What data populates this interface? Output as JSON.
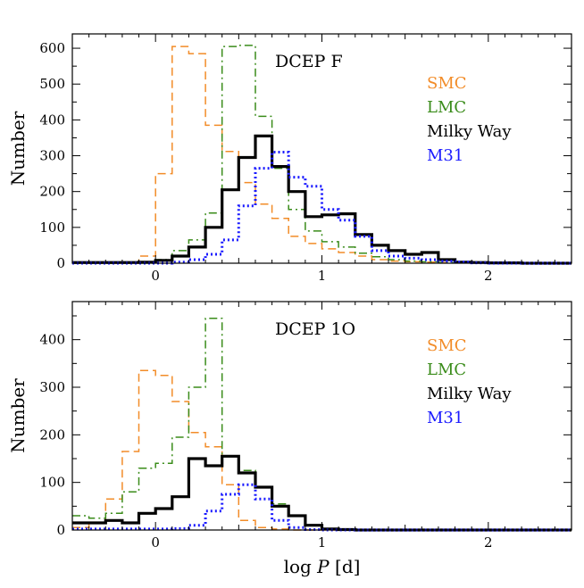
{
  "chart_data": [
    {
      "type": "histogram",
      "title": "DCEP F",
      "xlabel": "",
      "ylabel": "Number",
      "xlim": [
        -0.5,
        2.5
      ],
      "ylim": [
        0,
        640
      ],
      "xticks": [
        0,
        1,
        2
      ],
      "yticks": [
        0,
        100,
        200,
        300,
        400,
        500,
        600
      ],
      "legend_position": "right",
      "bin_edges": [
        -0.5,
        -0.4,
        -0.3,
        -0.2,
        -0.1,
        0.0,
        0.1,
        0.2,
        0.3,
        0.4,
        0.5,
        0.6,
        0.7,
        0.8,
        0.9,
        1.0,
        1.1,
        1.2,
        1.3,
        1.4,
        1.5,
        1.6,
        1.7,
        1.8,
        1.9,
        2.0,
        2.1,
        2.2,
        2.3,
        2.4,
        2.5
      ],
      "series": [
        {
          "name": "SMC",
          "color": "#f28c28",
          "linestyle": "dashed",
          "values": [
            0,
            0,
            0,
            0,
            20,
            250,
            605,
            585,
            385,
            312,
            225,
            165,
            125,
            75,
            55,
            40,
            30,
            20,
            10,
            6,
            4,
            3,
            2,
            2,
            1,
            1,
            0,
            0,
            0,
            0
          ]
        },
        {
          "name": "LMC",
          "color": "#3a8c1a",
          "linestyle": "dashdot",
          "values": [
            0,
            0,
            0,
            0,
            0,
            10,
            35,
            65,
            140,
            605,
            608,
            410,
            265,
            150,
            90,
            60,
            45,
            28,
            18,
            10,
            6,
            4,
            2,
            1,
            1,
            0,
            0,
            0,
            0,
            0
          ]
        },
        {
          "name": "Milky Way",
          "color": "#000000",
          "linestyle": "solid",
          "values": [
            2,
            2,
            2,
            2,
            3,
            8,
            20,
            45,
            100,
            205,
            295,
            355,
            270,
            200,
            130,
            135,
            138,
            80,
            50,
            35,
            25,
            30,
            10,
            3,
            2,
            1,
            1,
            0,
            0,
            0
          ]
        },
        {
          "name": "M31",
          "color": "#1a1aff",
          "linestyle": "dotted",
          "values": [
            0,
            0,
            0,
            0,
            0,
            0,
            3,
            10,
            25,
            65,
            160,
            265,
            310,
            240,
            215,
            150,
            120,
            75,
            35,
            20,
            14,
            10,
            6,
            3,
            1,
            0,
            0,
            0,
            0,
            0
          ]
        }
      ]
    },
    {
      "type": "histogram",
      "title": "DCEP 1O",
      "xlabel": "log P [d]",
      "ylabel": "Number",
      "xlim": [
        -0.5,
        2.5
      ],
      "ylim": [
        0,
        480
      ],
      "xticks": [
        0,
        1,
        2
      ],
      "yticks": [
        0,
        100,
        200,
        300,
        400
      ],
      "legend_position": "right",
      "bin_edges": [
        -0.5,
        -0.4,
        -0.3,
        -0.2,
        -0.1,
        0.0,
        0.1,
        0.2,
        0.3,
        0.4,
        0.5,
        0.6,
        0.7,
        0.8,
        0.9,
        1.0,
        1.1,
        1.2,
        1.3,
        1.4,
        1.5,
        1.6,
        1.7,
        1.8,
        1.9,
        2.0,
        2.1,
        2.2,
        2.3,
        2.4,
        2.5
      ],
      "series": [
        {
          "name": "SMC",
          "color": "#f28c28",
          "linestyle": "dashed",
          "values": [
            5,
            15,
            65,
            165,
            335,
            325,
            270,
            205,
            175,
            95,
            20,
            5,
            2,
            0,
            0,
            0,
            0,
            0,
            0,
            0,
            0,
            0,
            0,
            0,
            0,
            0,
            0,
            0,
            0,
            0
          ]
        },
        {
          "name": "LMC",
          "color": "#3a8c1a",
          "linestyle": "dashdot",
          "values": [
            30,
            25,
            35,
            80,
            130,
            140,
            195,
            300,
            445,
            155,
            125,
            90,
            55,
            30,
            10,
            3,
            1,
            0,
            0,
            0,
            0,
            0,
            0,
            0,
            0,
            0,
            0,
            0,
            0,
            0
          ]
        },
        {
          "name": "Milky Way",
          "color": "#000000",
          "linestyle": "solid",
          "values": [
            15,
            15,
            20,
            15,
            35,
            45,
            70,
            150,
            135,
            155,
            120,
            90,
            50,
            30,
            10,
            2,
            1,
            0,
            0,
            0,
            0,
            0,
            0,
            0,
            0,
            0,
            0,
            0,
            0,
            0
          ]
        },
        {
          "name": "M31",
          "color": "#1a1aff",
          "linestyle": "dotted",
          "values": [
            2,
            2,
            2,
            2,
            2,
            2,
            3,
            10,
            40,
            75,
            95,
            65,
            20,
            5,
            1,
            0,
            0,
            0,
            0,
            0,
            0,
            0,
            0,
            0,
            0,
            0,
            0,
            0,
            0,
            0
          ]
        }
      ]
    }
  ]
}
